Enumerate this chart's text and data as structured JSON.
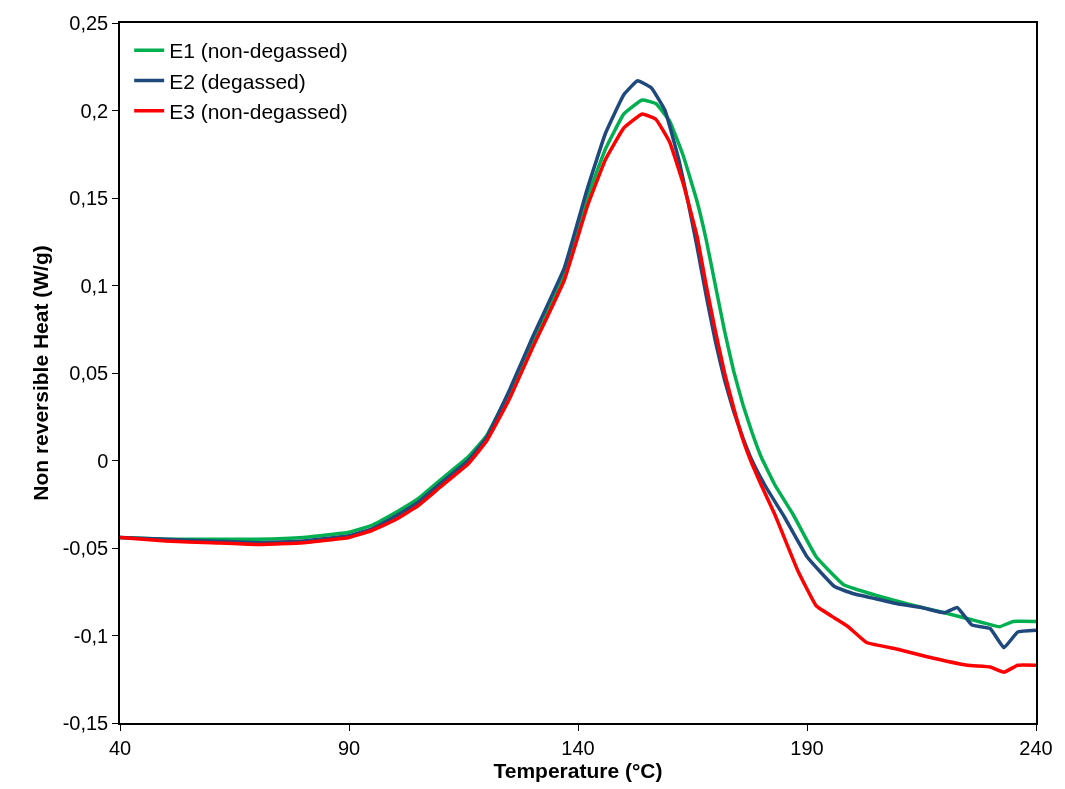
{
  "chart_data": {
    "type": "line",
    "xlabel": "Temperature (°C)",
    "ylabel": "Non reversible Heat (W/g)",
    "xlim": [
      40,
      240
    ],
    "xticks": [
      40,
      90,
      140,
      190,
      240
    ],
    "ylim": [
      -0.15,
      0.25
    ],
    "yticks": [
      {
        "value": -0.15,
        "label": "-0,15"
      },
      {
        "value": -0.1,
        "label": "-0,1"
      },
      {
        "value": -0.05,
        "label": "-0,05"
      },
      {
        "value": 0,
        "label": "0"
      },
      {
        "value": 0.05,
        "label": "0,05"
      },
      {
        "value": 0.1,
        "label": "0,1"
      },
      {
        "value": 0.15,
        "label": "0,15"
      },
      {
        "value": 0.2,
        "label": "0,2"
      },
      {
        "value": 0.25,
        "label": "0,25"
      }
    ],
    "legend": "top left",
    "marker": "none",
    "line_style": "solid",
    "series": [
      {
        "name": "E1 (non-degassed)",
        "color": "#00b050",
        "x": [
          40,
          50,
          60,
          70,
          80,
          90,
          95,
          100,
          105,
          110,
          116,
          120,
          125,
          130,
          137,
          142,
          146,
          150,
          154,
          157,
          160,
          163,
          166,
          168,
          170,
          172,
          174,
          176,
          178,
          180,
          183,
          187,
          192,
          198,
          205,
          212,
          220,
          226,
          232,
          235,
          240
        ],
        "values": [
          -0.044,
          -0.045,
          -0.045,
          -0.045,
          -0.044,
          -0.041,
          -0.037,
          -0.03,
          -0.022,
          -0.011,
          0.002,
          0.014,
          0.039,
          0.068,
          0.107,
          0.15,
          0.178,
          0.198,
          0.206,
          0.204,
          0.194,
          0.174,
          0.148,
          0.126,
          0.1,
          0.074,
          0.051,
          0.032,
          0.016,
          0.002,
          -0.014,
          -0.031,
          -0.055,
          -0.071,
          -0.077,
          -0.082,
          -0.087,
          -0.091,
          -0.095,
          -0.092,
          -0.092
        ]
      },
      {
        "name": "E2 (degassed)",
        "color": "#1f497d",
        "x": [
          40,
          50,
          60,
          70,
          80,
          90,
          95,
          100,
          105,
          110,
          116,
          120,
          125,
          130,
          137,
          142,
          146,
          150,
          153,
          156,
          159,
          162,
          164,
          166,
          168,
          170,
          172,
          174,
          176,
          178,
          181,
          185,
          190,
          196,
          200,
          205,
          210,
          215,
          220,
          222.8,
          226,
          230,
          233,
          236,
          240
        ],
        "values": [
          -0.044,
          -0.045,
          -0.046,
          -0.047,
          -0.046,
          -0.043,
          -0.039,
          -0.032,
          -0.024,
          -0.013,
          0,
          0.013,
          0.04,
          0.07,
          0.11,
          0.155,
          0.187,
          0.209,
          0.217,
          0.213,
          0.2,
          0.172,
          0.148,
          0.122,
          0.094,
          0.068,
          0.046,
          0.028,
          0.013,
          0,
          -0.015,
          -0.032,
          -0.055,
          -0.072,
          -0.076,
          -0.079,
          -0.082,
          -0.084,
          -0.087,
          -0.084,
          -0.094,
          -0.096,
          -0.107,
          -0.098,
          -0.097
        ]
      },
      {
        "name": "E3 (non-degassed)",
        "color": "#ff0000",
        "x": [
          40,
          50,
          60,
          70,
          80,
          90,
          95,
          100,
          105,
          110,
          116,
          120,
          125,
          130,
          137,
          142,
          146,
          150,
          154,
          157,
          160,
          163,
          166,
          168,
          170,
          172,
          174,
          176,
          178,
          180,
          183,
          188,
          192,
          196,
          199,
          203,
          210,
          216,
          225,
          230,
          233,
          236,
          240
        ],
        "values": [
          -0.044,
          -0.046,
          -0.047,
          -0.048,
          -0.047,
          -0.044,
          -0.04,
          -0.034,
          -0.026,
          -0.015,
          -0.002,
          0.011,
          0.035,
          0.064,
          0.103,
          0.145,
          0.172,
          0.19,
          0.198,
          0.195,
          0.182,
          0.158,
          0.128,
          0.1,
          0.074,
          0.05,
          0.03,
          0.012,
          -0.002,
          -0.014,
          -0.031,
          -0.063,
          -0.083,
          -0.09,
          -0.095,
          -0.104,
          -0.108,
          -0.112,
          -0.117,
          -0.118,
          -0.121,
          -0.117,
          -0.117
        ]
      }
    ]
  }
}
